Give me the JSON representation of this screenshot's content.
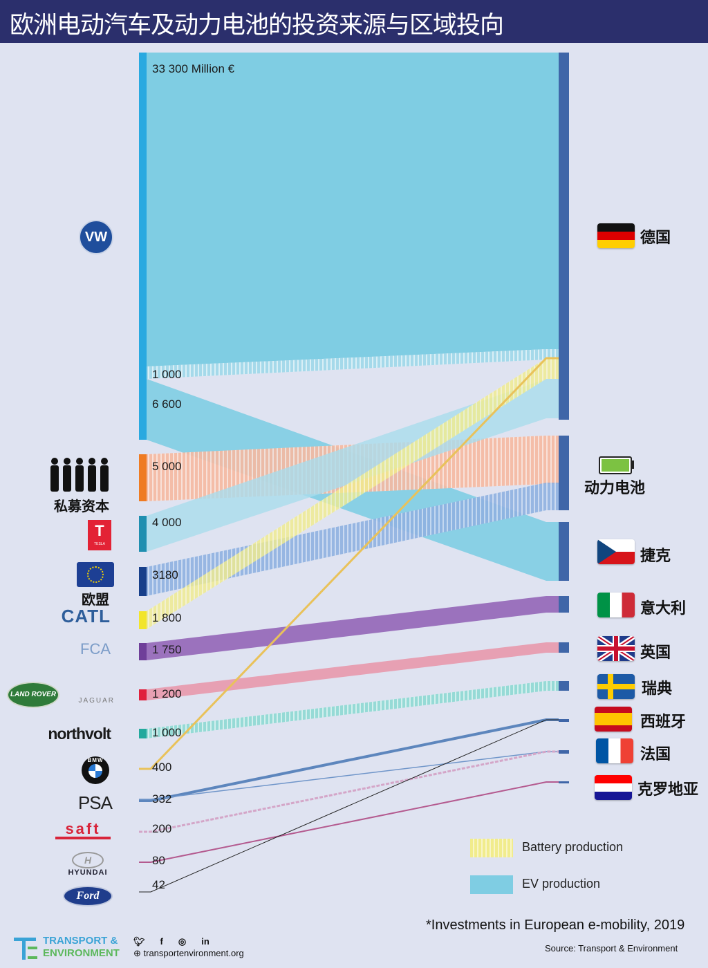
{
  "title": "欧洲电动汽车及动力电池的投资来源与区域投向",
  "chart_data": {
    "type": "sankey",
    "unit_note": "33 300 Million €",
    "sources": [
      {
        "id": "vw",
        "logo_text": "VW",
        "value_labels": [
          "33 300 Million €",
          "1 000",
          "6 600"
        ]
      },
      {
        "id": "private",
        "label": "私募资本",
        "value_label": "5 000"
      },
      {
        "id": "tesla",
        "logo_text": "TESLA",
        "value_label": "4 000"
      },
      {
        "id": "eu",
        "label": "欧盟",
        "value_label": "3180"
      },
      {
        "id": "catl",
        "logo_text": "CATL",
        "value_label": "1 800"
      },
      {
        "id": "fca",
        "logo_text": "FCA",
        "value_label": "1 750"
      },
      {
        "id": "jlr",
        "logo_text": [
          "LAND ROVER",
          "JAGUAR"
        ],
        "value_label": "1 200"
      },
      {
        "id": "northvolt",
        "logo_text": "northvolt",
        "value_label": "1 000"
      },
      {
        "id": "bmw",
        "logo_text": "BMW",
        "value_label": "400"
      },
      {
        "id": "psa",
        "logo_text": "PSA",
        "value_label": "332"
      },
      {
        "id": "saft",
        "logo_text": "saft",
        "value_label": "200"
      },
      {
        "id": "hyundai",
        "logo_text": "HYUNDAI",
        "value_label": "80"
      },
      {
        "id": "ford",
        "logo_text": "Ford",
        "value_label": "42"
      }
    ],
    "targets": [
      {
        "id": "de",
        "label": "德国"
      },
      {
        "id": "battery",
        "label": "动力电池"
      },
      {
        "id": "cz",
        "label": "捷克"
      },
      {
        "id": "it",
        "label": "意大利"
      },
      {
        "id": "uk",
        "label": "英国"
      },
      {
        "id": "se",
        "label": "瑞典"
      },
      {
        "id": "es",
        "label": "西班牙"
      },
      {
        "id": "fr",
        "label": "法国"
      },
      {
        "id": "hr",
        "label": "克罗地亚"
      }
    ],
    "flows": [
      {
        "source": "vw",
        "target": "de",
        "value": 25700,
        "type": "EV production"
      },
      {
        "source": "vw",
        "target": "de",
        "value": 1000,
        "type": "Battery production"
      },
      {
        "source": "vw",
        "target": "cz",
        "value": 6600,
        "type": "EV production"
      },
      {
        "source": "private",
        "target": "battery",
        "value": 5000,
        "type": "Battery production"
      },
      {
        "source": "tesla",
        "target": "de",
        "value": 4000,
        "type": "EV production"
      },
      {
        "source": "eu",
        "target": "battery",
        "value": 3180,
        "type": "Battery production"
      },
      {
        "source": "catl",
        "target": "de",
        "value": 1800,
        "type": "Battery production"
      },
      {
        "source": "fca",
        "target": "it",
        "value": 1750,
        "type": "EV production"
      },
      {
        "source": "jlr",
        "target": "uk",
        "value": 1200,
        "type": "EV production"
      },
      {
        "source": "northvolt",
        "target": "se",
        "value": 1000,
        "type": "Battery production"
      },
      {
        "source": "bmw",
        "target": "de",
        "value": 400,
        "type": "Battery production"
      },
      {
        "source": "psa",
        "target": "es",
        "value": 332,
        "type": "EV production"
      },
      {
        "source": "psa",
        "target": "fr",
        "value": null,
        "type": "EV production"
      },
      {
        "source": "saft",
        "target": "fr",
        "value": 200,
        "type": "Battery production"
      },
      {
        "source": "hyundai",
        "target": "hr",
        "value": 80,
        "type": "EV production"
      },
      {
        "source": "ford",
        "target": "es",
        "value": 42,
        "type": "EV production"
      }
    ],
    "legend": [
      {
        "label": "Battery production",
        "pattern": "hatched",
        "color": "#f2ee9c"
      },
      {
        "label": "EV production",
        "pattern": "solid",
        "color": "#7fcde3"
      }
    ],
    "colors": {
      "target_bar": "#3f66a8",
      "ev": "#7fcde3",
      "title_bg": "#2b2f6c",
      "background": "#dfe3f1"
    }
  },
  "footer": {
    "note": "*Investments in European e-mobility, 2019",
    "source": "Source: Transport & Environment",
    "org_line1": "TRANSPORT &",
    "org_line2": "ENVIRONMENT",
    "org_logo": "TE",
    "website": "transportenvironment.org",
    "social_icons": [
      "twitter-icon",
      "facebook-icon",
      "instagram-icon",
      "linkedin-icon"
    ]
  }
}
